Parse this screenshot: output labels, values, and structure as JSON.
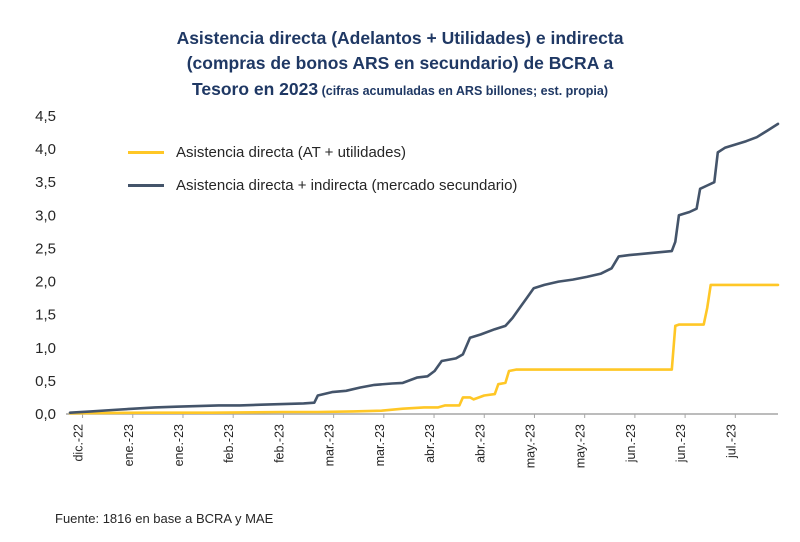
{
  "chart_data": {
    "type": "line",
    "title_lines": [
      "Asistencia directa (Adelantos + Utilidades) e indirecta",
      "(compras de bonos ARS en secundario) de BCRA a"
    ],
    "title_line3_bold": "Tesoro en 2023",
    "title_line3_note": " (cifras acumuladas en ARS billones; est. propia)",
    "ylim": [
      0,
      4.5
    ],
    "y_ticks": [
      {
        "value": 0.0,
        "label": "0,0"
      },
      {
        "value": 0.5,
        "label": "0,5"
      },
      {
        "value": 1.0,
        "label": "1,0"
      },
      {
        "value": 1.5,
        "label": "1,5"
      },
      {
        "value": 2.0,
        "label": "2,0"
      },
      {
        "value": 2.5,
        "label": "2,5"
      },
      {
        "value": 3.0,
        "label": "3,0"
      },
      {
        "value": 3.5,
        "label": "3,5"
      },
      {
        "value": 4.0,
        "label": "4,0"
      },
      {
        "value": 4.5,
        "label": "4,5"
      }
    ],
    "x_tick_labels": [
      "dic.-22",
      "ene.-23",
      "ene.-23",
      "feb.-23",
      "feb.-23",
      "mar.-23",
      "mar.-23",
      "abr.-23",
      "abr.-23",
      "may.-23",
      "may.-23",
      "jun.-23",
      "jun.-23",
      "jul.-23"
    ],
    "axis_color": "#a6a6a6",
    "label_color": "#262626",
    "series": [
      {
        "name": "Asistencia directa (AT + utilidades)",
        "color": "#FFC726",
        "points": [
          [
            0.0,
            0.01
          ],
          [
            0.1,
            0.02
          ],
          [
            0.2,
            0.02
          ],
          [
            0.3,
            0.03
          ],
          [
            0.35,
            0.03
          ],
          [
            0.4,
            0.04
          ],
          [
            0.44,
            0.05
          ],
          [
            0.47,
            0.08
          ],
          [
            0.5,
            0.1
          ],
          [
            0.52,
            0.1
          ],
          [
            0.53,
            0.13
          ],
          [
            0.55,
            0.13
          ],
          [
            0.555,
            0.25
          ],
          [
            0.565,
            0.25
          ],
          [
            0.57,
            0.22
          ],
          [
            0.585,
            0.28
          ],
          [
            0.6,
            0.3
          ],
          [
            0.605,
            0.45
          ],
          [
            0.615,
            0.47
          ],
          [
            0.62,
            0.65
          ],
          [
            0.63,
            0.67
          ],
          [
            0.85,
            0.67
          ],
          [
            0.855,
            1.33
          ],
          [
            0.86,
            1.35
          ],
          [
            0.895,
            1.35
          ],
          [
            0.9,
            1.6
          ],
          [
            0.905,
            1.95
          ],
          [
            0.92,
            1.95
          ],
          [
            1.0,
            1.95
          ]
        ]
      },
      {
        "name": "Asistencia directa + indirecta (mercado secundario)",
        "color": "#44546A",
        "points": [
          [
            0.0,
            0.02
          ],
          [
            0.03,
            0.04
          ],
          [
            0.06,
            0.06
          ],
          [
            0.09,
            0.08
          ],
          [
            0.12,
            0.1
          ],
          [
            0.15,
            0.11
          ],
          [
            0.18,
            0.12
          ],
          [
            0.21,
            0.13
          ],
          [
            0.24,
            0.13
          ],
          [
            0.27,
            0.14
          ],
          [
            0.3,
            0.15
          ],
          [
            0.33,
            0.16
          ],
          [
            0.345,
            0.17
          ],
          [
            0.35,
            0.28
          ],
          [
            0.37,
            0.33
          ],
          [
            0.39,
            0.35
          ],
          [
            0.41,
            0.4
          ],
          [
            0.43,
            0.44
          ],
          [
            0.455,
            0.46
          ],
          [
            0.47,
            0.47
          ],
          [
            0.49,
            0.55
          ],
          [
            0.505,
            0.57
          ],
          [
            0.515,
            0.65
          ],
          [
            0.525,
            0.8
          ],
          [
            0.545,
            0.84
          ],
          [
            0.555,
            0.9
          ],
          [
            0.565,
            1.15
          ],
          [
            0.58,
            1.2
          ],
          [
            0.6,
            1.28
          ],
          [
            0.615,
            1.33
          ],
          [
            0.625,
            1.45
          ],
          [
            0.635,
            1.6
          ],
          [
            0.645,
            1.75
          ],
          [
            0.655,
            1.9
          ],
          [
            0.67,
            1.95
          ],
          [
            0.69,
            2.0
          ],
          [
            0.71,
            2.03
          ],
          [
            0.73,
            2.07
          ],
          [
            0.75,
            2.12
          ],
          [
            0.765,
            2.2
          ],
          [
            0.775,
            2.38
          ],
          [
            0.79,
            2.4
          ],
          [
            0.82,
            2.43
          ],
          [
            0.85,
            2.46
          ],
          [
            0.855,
            2.6
          ],
          [
            0.86,
            3.0
          ],
          [
            0.875,
            3.05
          ],
          [
            0.885,
            3.1
          ],
          [
            0.89,
            3.4
          ],
          [
            0.9,
            3.45
          ],
          [
            0.91,
            3.5
          ],
          [
            0.915,
            3.95
          ],
          [
            0.925,
            4.02
          ],
          [
            0.94,
            4.07
          ],
          [
            0.955,
            4.12
          ],
          [
            0.97,
            4.18
          ],
          [
            0.985,
            4.28
          ],
          [
            1.0,
            4.38
          ]
        ]
      }
    ]
  },
  "source": {
    "text": "Fuente: 1816 en base a BCRA y MAE"
  }
}
